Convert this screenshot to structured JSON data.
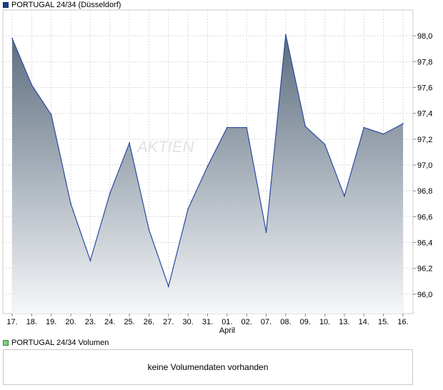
{
  "legend": {
    "price_label": "PORTUGAL 24/34 (Düsseldorf)",
    "volume_label": "PORTUGAL 24/34 Volumen"
  },
  "volume_panel": {
    "message": "keine Volumendaten vorhanden"
  },
  "watermark": {
    "text": "AKTIEN"
  },
  "colors": {
    "line": "#2a4aa0",
    "fill_top": "#5c6d7e",
    "fill_bottom": "#f6f7f9",
    "grid": "#d9d9d9"
  },
  "chart_data": {
    "type": "area",
    "x_labels": [
      "17.",
      "18.",
      "19.",
      "20.",
      "23.",
      "24.",
      "25.",
      "26.",
      "27.",
      "30.",
      "31.",
      "01.",
      "02.",
      "07.",
      "08.",
      "09.",
      "10.",
      "13.",
      "14.",
      "15.",
      "16."
    ],
    "x_sublabels": [
      {
        "index": 11,
        "text": "April"
      }
    ],
    "series": [
      {
        "name": "PORTUGAL 24/34 (Düsseldorf)",
        "values": [
          97.98,
          97.62,
          97.39,
          96.7,
          96.26,
          96.78,
          97.17,
          96.5,
          96.06,
          96.66,
          96.99,
          97.29,
          97.29,
          96.48,
          98.01,
          97.3,
          97.16,
          96.76,
          97.29,
          97.24,
          97.32
        ]
      }
    ],
    "y_ticks": [
      "98,0",
      "97,8",
      "97,6",
      "97,4",
      "97,2",
      "97,0",
      "96,8",
      "96,6",
      "96,4",
      "96,2",
      "96,0"
    ],
    "ylim": [
      95.85,
      98.2
    ],
    "grid": true,
    "y_axis_side": "right"
  }
}
